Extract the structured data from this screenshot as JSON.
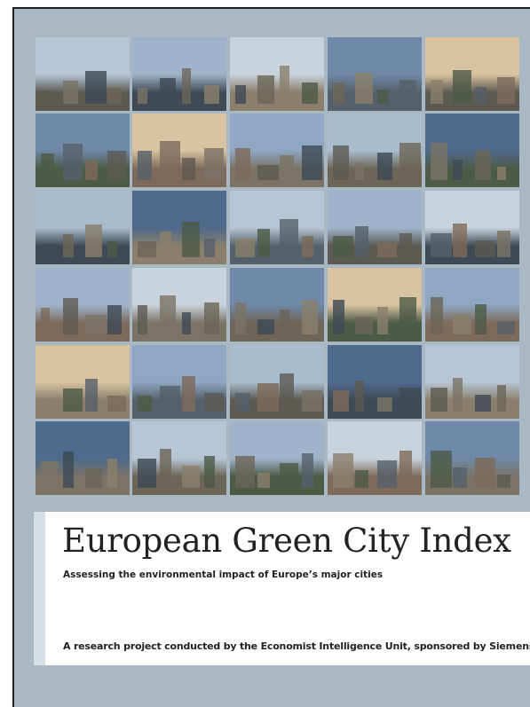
{
  "cover": {
    "title": "European Green City Index",
    "subtitle": "Assessing the environmental impact of Europe’s major cities",
    "footer": "A research project conducted by the Economist Intelligence Unit, sponsored by Siemens"
  }
}
